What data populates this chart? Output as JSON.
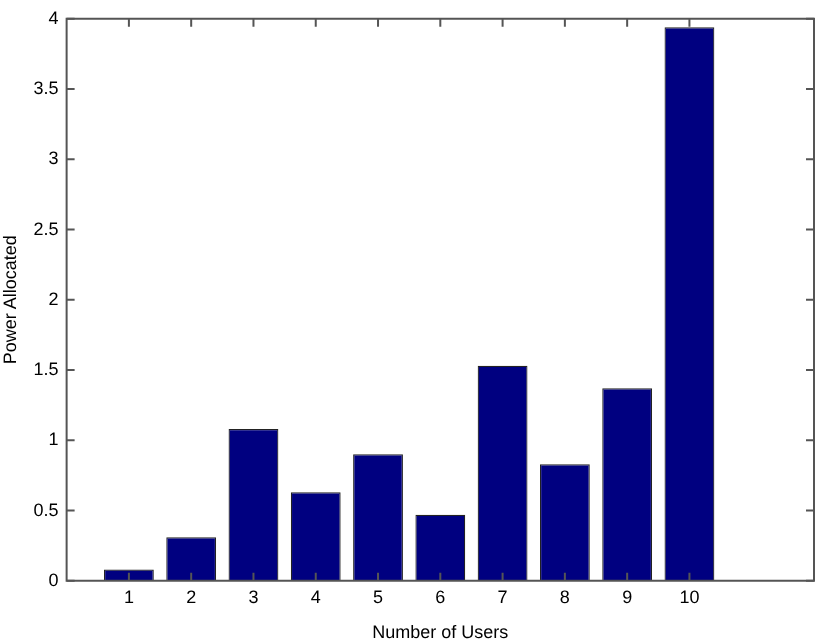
{
  "chart_data": {
    "type": "bar",
    "xlabel": "Number of Users",
    "ylabel": "Power Allocated",
    "x": [
      1,
      2,
      3,
      4,
      5,
      6,
      7,
      8,
      9,
      10
    ],
    "values": [
      0.08,
      0.31,
      1.08,
      0.63,
      0.9,
      0.47,
      1.53,
      0.83,
      1.37,
      3.94
    ],
    "color": "#000080",
    "xlim": [
      0,
      12
    ],
    "xticks": [
      1,
      2,
      3,
      4,
      5,
      6,
      7,
      8,
      9,
      10
    ],
    "ylim": [
      0,
      4
    ],
    "yticks": [
      0,
      0.5,
      1,
      1.5,
      2,
      2.5,
      3,
      3.5,
      4
    ],
    "grid": false,
    "legend": false
  }
}
